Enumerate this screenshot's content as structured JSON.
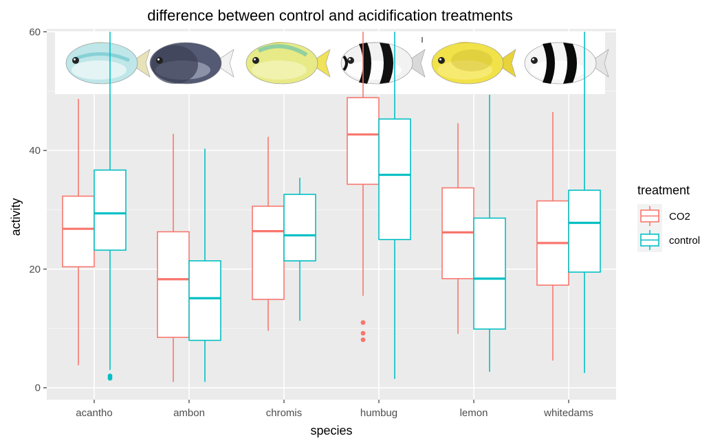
{
  "chart_data": {
    "type": "boxplot",
    "title": "difference between control and acidification treatments",
    "xlabel": "species",
    "ylabel": "activity",
    "ylim": [
      -2,
      60.5
    ],
    "yticks": [
      0,
      20,
      40,
      60
    ],
    "grid": true,
    "legend_placement": "right",
    "legend_title": "treatment",
    "categories": [
      "acantho",
      "ambon",
      "chromis",
      "humbug",
      "lemon",
      "whitedams"
    ],
    "series": [
      {
        "name": "CO2",
        "color": "#F8766D",
        "boxes": [
          {
            "min": 3.8,
            "q1": 20.4,
            "median": 26.8,
            "q3": 32.3,
            "max": 48.7,
            "outliers": []
          },
          {
            "min": 1.0,
            "q1": 8.5,
            "median": 18.3,
            "q3": 26.3,
            "max": 42.8,
            "outliers": []
          },
          {
            "min": 9.6,
            "q1": 14.9,
            "median": 26.4,
            "q3": 30.6,
            "max": 42.3,
            "outliers": []
          },
          {
            "min": 15.5,
            "q1": 34.3,
            "median": 42.7,
            "q3": 48.9,
            "max": 60,
            "outliers": [
              11.0,
              9.2,
              8.1
            ]
          },
          {
            "min": 9.1,
            "q1": 18.4,
            "median": 26.2,
            "q3": 33.7,
            "max": 44.6,
            "outliers": []
          },
          {
            "min": 4.6,
            "q1": 17.3,
            "median": 24.4,
            "q3": 31.5,
            "max": 46.5,
            "outliers": []
          }
        ]
      },
      {
        "name": "control",
        "color": "#00BFC4",
        "boxes": [
          {
            "min": 3.0,
            "q1": 23.2,
            "median": 29.4,
            "q3": 36.7,
            "max": 60,
            "outliers": [
              2.0,
              1.6
            ]
          },
          {
            "min": 1.0,
            "q1": 8.0,
            "median": 15.1,
            "q3": 21.4,
            "max": 40.3,
            "outliers": []
          },
          {
            "min": 11.3,
            "q1": 21.4,
            "median": 25.7,
            "q3": 32.6,
            "max": 35.4,
            "outliers": []
          },
          {
            "min": 1.5,
            "q1": 25.0,
            "median": 35.9,
            "q3": 45.3,
            "max": 60,
            "outliers": []
          },
          {
            "min": 2.7,
            "q1": 9.9,
            "median": 18.4,
            "q3": 28.6,
            "max": 49.4,
            "outliers": []
          },
          {
            "min": 2.5,
            "q1": 19.5,
            "median": 27.8,
            "q3": 33.3,
            "max": 60,
            "outliers": []
          }
        ]
      }
    ],
    "fish_images": [
      {
        "species": "acantho",
        "icon": "acantho-fish-icon",
        "body": "#bfe6e8",
        "belly": "#eef8f6",
        "fin": "#e8e2b8",
        "accent": "#6ec7cf"
      },
      {
        "species": "ambon",
        "icon": "ambon-fish-icon",
        "body": "#545a73",
        "belly": "#9aa0b4",
        "fin": "#f2f2f2",
        "accent": "#3b3f55"
      },
      {
        "species": "chromis",
        "icon": "chromis-fish-icon",
        "body": "#e7ea86",
        "belly": "#f3f4b8",
        "fin": "#f0e25a",
        "accent": "#7cc9a6"
      },
      {
        "species": "humbug",
        "icon": "humbug-fish-icon",
        "body": "#f2f2f2",
        "belly": "#ffffff",
        "fin": "#d9d9d9",
        "accent": "#111111"
      },
      {
        "species": "lemon",
        "icon": "lemon-fish-icon",
        "body": "#f2e24a",
        "belly": "#f7ec7a",
        "fin": "#e8d33a",
        "accent": "#c7b22a"
      },
      {
        "species": "whitedams",
        "icon": "whitedams-fish-icon",
        "body": "#f5f5f5",
        "belly": "#ffffff",
        "fin": "#e5e5e5",
        "accent": "#0a0a0a"
      }
    ]
  }
}
